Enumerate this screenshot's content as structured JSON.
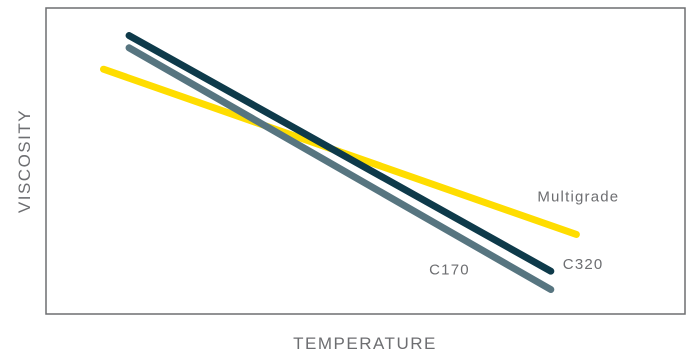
{
  "chart_data": {
    "type": "line",
    "xlabel": "TEMPERATURE",
    "ylabel": "VISCOSITY",
    "xlim": [
      0,
      100
    ],
    "ylim": [
      0,
      100
    ],
    "grid": false,
    "legend": "inline labels at line ends",
    "series": [
      {
        "name": "Multigrade",
        "color": "#ffdd00",
        "points": [
          {
            "x": 9,
            "y": 80
          },
          {
            "x": 83,
            "y": 26
          }
        ]
      },
      {
        "name": "C170",
        "color": "#577580",
        "points": [
          {
            "x": 13,
            "y": 87
          },
          {
            "x": 79,
            "y": 8
          }
        ]
      },
      {
        "name": "C320",
        "color": "#0e3a4a",
        "points": [
          {
            "x": 13,
            "y": 91
          },
          {
            "x": 79,
            "y": 14
          }
        ]
      }
    ]
  }
}
